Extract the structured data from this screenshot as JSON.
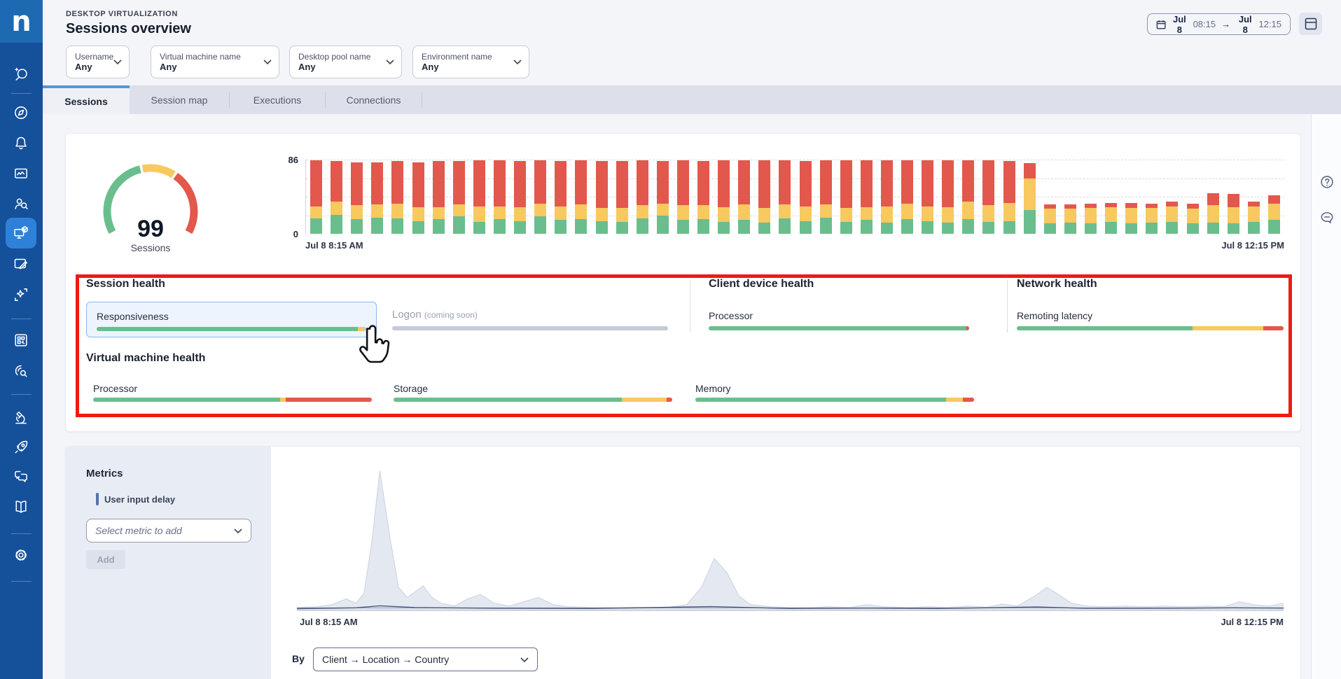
{
  "app": {
    "brand": "n"
  },
  "header": {
    "eyebrow": "DESKTOP VIRTUALIZATION",
    "title": "Sessions overview",
    "date_range": {
      "start_day": "Jul 8",
      "start_time": "08:15",
      "separator": "→",
      "end_day": "Jul 8",
      "end_time": "12:15"
    }
  },
  "filters": [
    {
      "label": "Username",
      "value": "Any"
    },
    {
      "label": "Virtual machine name",
      "value": "Any"
    },
    {
      "label": "Desktop pool name",
      "value": "Any"
    },
    {
      "label": "Environment name",
      "value": "Any"
    }
  ],
  "tabs": [
    {
      "label": "Sessions",
      "active": true
    },
    {
      "label": "Session map",
      "active": false
    },
    {
      "label": "Executions",
      "active": false
    },
    {
      "label": "Connections",
      "active": false
    }
  ],
  "sidebar_icons": [
    "ai-search",
    "explore-compass",
    "alerts-bell",
    "dashboards-monitor",
    "user-search",
    "desktop-virtualization",
    "content-edit",
    "amplify-sparkle",
    "applications-grid",
    "discover-search",
    "experiments-microscope",
    "launch-rocket",
    "feedback-chat",
    "documentation-book",
    "settings-gear"
  ],
  "right_rail_icons": [
    "help",
    "feedback"
  ],
  "colors": {
    "green": "#6ABE8E",
    "yellow": "#F7C95F",
    "red": "#E2584D",
    "track": "#C5CAD6",
    "accent_blue": "#2F80D9",
    "annotation_red": "#EC1C12"
  },
  "chart_data": [
    {
      "id": "sessions_gauge",
      "type": "donut-gauge",
      "value": "99",
      "label": "Sessions",
      "arc_degrees": 240,
      "segments": [
        {
          "name": "healthy",
          "color_key": "green",
          "pct": 45
        },
        {
          "name": "needs-attention",
          "color_key": "yellow",
          "pct": 19
        },
        {
          "name": "critical",
          "color_key": "red",
          "pct": 36
        }
      ]
    },
    {
      "id": "sessions_over_time",
      "type": "bar",
      "stacked": true,
      "ylim": [
        0,
        86
      ],
      "y_axis_labels": [
        "86",
        "0"
      ],
      "x_axis_labels": [
        "Jul 8 8:15 AM",
        "Jul 8 12:15 PM"
      ],
      "gridline_values": [
        86,
        64.5,
        43,
        21.5
      ],
      "series": [
        {
          "name": "healthy",
          "color_key": "green",
          "values": [
            18,
            22,
            17,
            19,
            18,
            15,
            17,
            20,
            14,
            17,
            15,
            20,
            16,
            17,
            15,
            14,
            18,
            21,
            16,
            17,
            14,
            16,
            13,
            18,
            15,
            19,
            14,
            16,
            13,
            17,
            15,
            13,
            17,
            14,
            15,
            28,
            12,
            13,
            12,
            14,
            12,
            13,
            14,
            12,
            13,
            12,
            14,
            16
          ]
        },
        {
          "name": "needs-attention",
          "color_key": "yellow",
          "values": [
            14,
            15,
            16,
            15,
            17,
            16,
            14,
            14,
            18,
            15,
            16,
            15,
            16,
            17,
            15,
            16,
            15,
            14,
            17,
            16,
            17,
            18,
            17,
            16,
            17,
            15,
            16,
            15,
            19,
            18,
            17,
            18,
            20,
            19,
            21,
            36,
            17,
            16,
            18,
            17,
            18,
            17,
            18,
            17,
            20,
            19,
            18,
            19
          ]
        },
        {
          "name": "critical",
          "color_key": "red",
          "values": [
            53,
            47,
            50,
            49,
            49,
            52,
            53,
            50,
            53,
            53,
            53,
            50,
            52,
            51,
            54,
            54,
            52,
            49,
            52,
            51,
            54,
            51,
            55,
            51,
            52,
            51,
            55,
            54,
            53,
            50,
            53,
            54,
            48,
            52,
            48,
            18,
            5,
            5,
            5,
            5,
            6,
            5,
            5,
            6,
            14,
            15,
            5,
            10
          ]
        }
      ]
    },
    {
      "id": "user_input_delay_trend",
      "type": "area",
      "x_axis_labels": [
        "Jul 8 8:15 AM",
        "Jul 8 12:15 PM"
      ],
      "area_fill": "#E3E8F1",
      "area_stroke": "#CBD3E1",
      "points": [
        [
          0,
          2
        ],
        [
          2,
          2.5
        ],
        [
          3.5,
          4
        ],
        [
          5,
          8
        ],
        [
          6,
          5
        ],
        [
          6.8,
          12
        ],
        [
          7.6,
          48
        ],
        [
          8.4,
          97
        ],
        [
          9.4,
          52
        ],
        [
          10.3,
          16
        ],
        [
          11.2,
          9
        ],
        [
          12,
          13
        ],
        [
          12.8,
          17
        ],
        [
          13.7,
          9
        ],
        [
          14.6,
          5
        ],
        [
          16,
          3
        ],
        [
          17.3,
          8
        ],
        [
          18.6,
          11
        ],
        [
          20,
          5
        ],
        [
          21.5,
          3
        ],
        [
          23,
          6
        ],
        [
          24.5,
          9
        ],
        [
          26,
          4
        ],
        [
          27.5,
          2.5
        ],
        [
          30,
          2
        ],
        [
          32.5,
          2
        ],
        [
          35,
          2
        ],
        [
          37.5,
          2
        ],
        [
          39.5,
          4
        ],
        [
          41,
          16
        ],
        [
          42.3,
          36
        ],
        [
          43.6,
          26
        ],
        [
          44.8,
          10
        ],
        [
          46,
          4
        ],
        [
          48,
          2.5
        ],
        [
          50,
          2
        ],
        [
          52,
          2
        ],
        [
          54,
          2.5
        ],
        [
          56,
          2
        ],
        [
          57.8,
          4
        ],
        [
          59.5,
          2.5
        ],
        [
          62,
          2
        ],
        [
          64,
          2.5
        ],
        [
          66,
          2
        ],
        [
          68,
          3
        ],
        [
          70,
          2.2
        ],
        [
          71.5,
          4.5
        ],
        [
          73,
          3
        ],
        [
          74.8,
          10
        ],
        [
          76,
          16
        ],
        [
          77.2,
          11
        ],
        [
          78.5,
          5
        ],
        [
          80,
          3
        ],
        [
          82,
          2.5
        ],
        [
          84,
          3
        ],
        [
          86,
          2.5
        ],
        [
          88,
          3
        ],
        [
          90,
          2.5
        ],
        [
          92,
          3
        ],
        [
          94,
          2.5
        ],
        [
          95.5,
          6
        ],
        [
          97,
          4
        ],
        [
          98.5,
          3
        ],
        [
          100,
          5
        ]
      ],
      "baselines": [
        {
          "name": "metric-line",
          "color": "#4A5875",
          "points": [
            [
              0,
              1.2
            ],
            [
              6,
              1.8
            ],
            [
              8.4,
              3.2
            ],
            [
              12,
              2
            ],
            [
              20,
              1.5
            ],
            [
              30,
              1.3
            ],
            [
              42,
              2.6
            ],
            [
              50,
              1.3
            ],
            [
              58,
              1.6
            ],
            [
              65,
              1.3
            ],
            [
              75,
              2.4
            ],
            [
              80,
              1.4
            ],
            [
              88,
              1.5
            ],
            [
              95,
              1.8
            ],
            [
              100,
              1.6
            ]
          ]
        },
        {
          "name": "secondary-line",
          "color": "#8F95D6",
          "y": 0.8
        }
      ]
    }
  ],
  "health": {
    "session": {
      "title": "Session health",
      "items": [
        {
          "label": "Responsiveness",
          "selected": true,
          "segments": [
            {
              "color_key": "green",
              "pct": 97
            },
            {
              "color_key": "yellow",
              "pct": 2
            },
            {
              "color_key": "track",
              "pct": 1
            }
          ]
        },
        {
          "label": "Logon",
          "suffix": "(coming soon)",
          "disabled": true,
          "segments": [
            {
              "color_key": "track",
              "pct": 100
            }
          ]
        }
      ]
    },
    "client": {
      "title": "Client device health",
      "items": [
        {
          "label": "Processor",
          "segments": [
            {
              "color_key": "green",
              "pct": 98.8
            },
            {
              "color_key": "red",
              "pct": 1.2
            }
          ]
        }
      ]
    },
    "network": {
      "title": "Network health",
      "items": [
        {
          "label": "Remoting latency",
          "segments": [
            {
              "color_key": "green",
              "pct": 66
            },
            {
              "color_key": "yellow",
              "pct": 26.5
            },
            {
              "color_key": "red",
              "pct": 7.5
            }
          ]
        }
      ]
    },
    "vm": {
      "title": "Virtual machine health",
      "items": [
        {
          "label": "Processor",
          "segments": [
            {
              "color_key": "green",
              "pct": 67
            },
            {
              "color_key": "yellow",
              "pct": 2
            },
            {
              "color_key": "red",
              "pct": 31
            }
          ]
        },
        {
          "label": "Storage",
          "segments": [
            {
              "color_key": "green",
              "pct": 82
            },
            {
              "color_key": "yellow",
              "pct": 16
            },
            {
              "color_key": "red",
              "pct": 2
            }
          ]
        },
        {
          "label": "Memory",
          "segments": [
            {
              "color_key": "green",
              "pct": 90
            },
            {
              "color_key": "yellow",
              "pct": 6
            },
            {
              "color_key": "red",
              "pct": 4
            }
          ]
        }
      ]
    }
  },
  "metrics_panel": {
    "title": "Metrics",
    "selected_metric": "User input delay",
    "select_placeholder": "Select metric to add",
    "add_label": "Add"
  },
  "breakdown": {
    "label": "By",
    "selected": "Client → Location → Country"
  }
}
